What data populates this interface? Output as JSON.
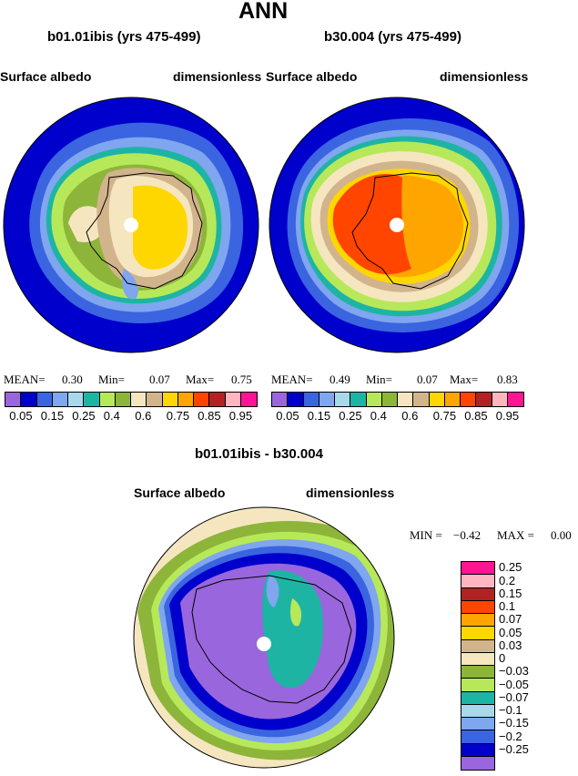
{
  "title": "ANN",
  "left_panel": {
    "case": "b01.01ibis (yrs 475-499)",
    "variable": "Surface albedo",
    "units": "dimensionless",
    "stats": {
      "mean_label": "MEAN=",
      "mean": "0.30",
      "min_label": "Min=",
      "min": "0.07",
      "max_label": "Max=",
      "max": "0.75"
    }
  },
  "right_panel": {
    "case": "b30.004 (yrs 475-499)",
    "variable": "Surface albedo",
    "units": "dimensionless",
    "stats": {
      "mean_label": "MEAN=",
      "mean": "0.49",
      "min_label": "Min=",
      "min": "0.07",
      "max_label": "Max=",
      "max": "0.83"
    }
  },
  "diff_panel": {
    "case": "b01.01ibis - b30.004",
    "variable": "Surface albedo",
    "units": "dimensionless",
    "stats": {
      "min_label": "MIN =",
      "min": "−0.42",
      "max_label": "MAX =",
      "max": "0.00"
    }
  },
  "colorbar_top": {
    "colors": [
      "#9966dd",
      "#0000cc",
      "#3b64e0",
      "#7fa6ee",
      "#a8d8ea",
      "#1eb4a4",
      "#b7e85a",
      "#8db53a",
      "#f5e6c0",
      "#d2b48c",
      "#ffd700",
      "#ffa500",
      "#ff4500",
      "#b22222",
      "#ffb6c1",
      "#ff1493"
    ],
    "ticks": [
      "0.05",
      "0.15",
      "0.25",
      "0.4",
      "0.6",
      "0.75",
      "0.85",
      "0.95"
    ]
  },
  "colorbar_diff": {
    "colors": [
      "#ff1493",
      "#ffb6c1",
      "#b22222",
      "#ff4500",
      "#ffa500",
      "#ffd700",
      "#d2b48c",
      "#f5e6c0",
      "#8db53a",
      "#b7e85a",
      "#1eb4a4",
      "#a8d8ea",
      "#7fa6ee",
      "#3b64e0",
      "#0000cc",
      "#9966dd"
    ],
    "ticks": [
      "0.25",
      "0.2",
      "0.15",
      "0.1",
      "0.07",
      "0.05",
      "0.03",
      "0",
      "−0.03",
      "−0.05",
      "−0.07",
      "−0.1",
      "−0.15",
      "−0.2",
      "−0.25"
    ]
  }
}
